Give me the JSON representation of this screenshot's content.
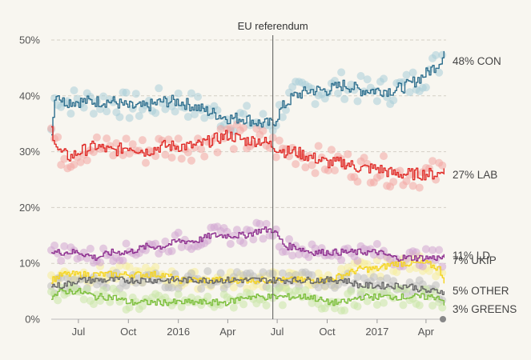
{
  "chart_data": {
    "type": "line",
    "title": "",
    "xlabel": "",
    "ylabel": "",
    "x_range": [
      "2015-05-12",
      "2017-05-08"
    ],
    "ylim": [
      0,
      52
    ],
    "y_ticks": [
      0,
      10,
      20,
      30,
      40,
      50
    ],
    "y_tick_labels": [
      "0%",
      "10%",
      "20%",
      "30%",
      "40%",
      "50%"
    ],
    "x_ticks": [
      {
        "date": "2015-07-01",
        "label": "Jul"
      },
      {
        "date": "2015-10-01",
        "label": "Oct"
      },
      {
        "date": "2016-01-01",
        "label": "2016"
      },
      {
        "date": "2016-04-01",
        "label": "Apr"
      },
      {
        "date": "2016-07-01",
        "label": "Jul"
      },
      {
        "date": "2016-10-01",
        "label": "Oct"
      },
      {
        "date": "2017-01-01",
        "label": "2017"
      },
      {
        "date": "2017-04-01",
        "label": "Apr"
      }
    ],
    "grid": "horizontal dashed",
    "annotation": {
      "date": "2016-06-23",
      "label": "EU referendum"
    },
    "series": [
      {
        "name": "CON",
        "color": "#2e6f8e",
        "dot_color": "#a9cdd8",
        "end_label": "48% CON",
        "points": [
          [
            "2015-05-12",
            34
          ],
          [
            "2015-05-20",
            41
          ],
          [
            "2015-06-01",
            39
          ],
          [
            "2015-07-01",
            39
          ],
          [
            "2015-08-01",
            39
          ],
          [
            "2015-09-01",
            39
          ],
          [
            "2015-10-01",
            38
          ],
          [
            "2015-11-01",
            38
          ],
          [
            "2015-12-01",
            39
          ],
          [
            "2016-01-01",
            39
          ],
          [
            "2016-02-01",
            38
          ],
          [
            "2016-03-01",
            37
          ],
          [
            "2016-04-01",
            36
          ],
          [
            "2016-05-01",
            36
          ],
          [
            "2016-06-01",
            35
          ],
          [
            "2016-06-23",
            35
          ],
          [
            "2016-07-10",
            38
          ],
          [
            "2016-08-01",
            40
          ],
          [
            "2016-09-01",
            41
          ],
          [
            "2016-10-01",
            41
          ],
          [
            "2016-11-01",
            42
          ],
          [
            "2016-12-01",
            41
          ],
          [
            "2017-01-01",
            41
          ],
          [
            "2017-02-01",
            41
          ],
          [
            "2017-03-01",
            42
          ],
          [
            "2017-04-01",
            44
          ],
          [
            "2017-04-25",
            46
          ],
          [
            "2017-05-04",
            48
          ]
        ]
      },
      {
        "name": "LAB",
        "color": "#e02b27",
        "dot_color": "#f3a5a3",
        "end_label": "27% LAB",
        "points": [
          [
            "2015-05-12",
            34
          ],
          [
            "2015-05-25",
            30
          ],
          [
            "2015-06-15",
            29
          ],
          [
            "2015-07-01",
            30
          ],
          [
            "2015-08-01",
            31
          ],
          [
            "2015-09-01",
            30
          ],
          [
            "2015-10-01",
            31
          ],
          [
            "2015-11-01",
            30
          ],
          [
            "2015-12-01",
            31
          ],
          [
            "2016-01-01",
            31
          ],
          [
            "2016-02-01",
            31
          ],
          [
            "2016-03-01",
            32
          ],
          [
            "2016-04-01",
            33
          ],
          [
            "2016-05-01",
            32
          ],
          [
            "2016-06-01",
            32
          ],
          [
            "2016-06-23",
            31
          ],
          [
            "2016-07-15",
            30
          ],
          [
            "2016-08-01",
            30
          ],
          [
            "2016-09-01",
            29
          ],
          [
            "2016-10-01",
            28
          ],
          [
            "2016-11-01",
            28
          ],
          [
            "2016-12-01",
            27
          ],
          [
            "2017-01-01",
            27
          ],
          [
            "2017-02-01",
            26
          ],
          [
            "2017-03-01",
            26
          ],
          [
            "2017-04-01",
            26
          ],
          [
            "2017-04-25",
            26
          ],
          [
            "2017-05-04",
            27
          ]
        ]
      },
      {
        "name": "UKIP",
        "color": "#f5d41f",
        "dot_color": "#f6ec9a",
        "end_label": "7% UKIP",
        "points": [
          [
            "2015-05-12",
            7
          ],
          [
            "2015-06-01",
            8
          ],
          [
            "2015-07-01",
            8
          ],
          [
            "2015-08-01",
            8
          ],
          [
            "2015-09-01",
            8
          ],
          [
            "2015-10-01",
            8
          ],
          [
            "2015-11-01",
            8
          ],
          [
            "2015-12-01",
            8
          ],
          [
            "2016-01-01",
            7
          ],
          [
            "2016-02-01",
            7
          ],
          [
            "2016-03-01",
            7
          ],
          [
            "2016-04-01",
            7
          ],
          [
            "2016-05-01",
            7
          ],
          [
            "2016-06-01",
            7
          ],
          [
            "2016-06-23",
            7
          ],
          [
            "2016-07-15",
            7
          ],
          [
            "2016-08-01",
            7
          ],
          [
            "2016-09-01",
            7
          ],
          [
            "2016-10-01",
            7
          ],
          [
            "2016-11-01",
            8
          ],
          [
            "2016-12-01",
            9
          ],
          [
            "2017-01-01",
            9
          ],
          [
            "2017-02-01",
            10
          ],
          [
            "2017-03-01",
            10
          ],
          [
            "2017-04-01",
            10
          ],
          [
            "2017-04-25",
            9
          ],
          [
            "2017-05-04",
            7
          ]
        ]
      },
      {
        "name": "LD",
        "color": "#8e3090",
        "dot_color": "#d1a5d2",
        "end_label": "11% LD",
        "points": [
          [
            "2015-05-12",
            12
          ],
          [
            "2015-06-01",
            12
          ],
          [
            "2015-07-01",
            12
          ],
          [
            "2015-08-01",
            11
          ],
          [
            "2015-09-01",
            12
          ],
          [
            "2015-10-01",
            12
          ],
          [
            "2015-11-01",
            13
          ],
          [
            "2015-12-01",
            13
          ],
          [
            "2016-01-01",
            14
          ],
          [
            "2016-02-01",
            14
          ],
          [
            "2016-03-01",
            15
          ],
          [
            "2016-04-01",
            15
          ],
          [
            "2016-05-01",
            15
          ],
          [
            "2016-06-01",
            16
          ],
          [
            "2016-06-23",
            16
          ],
          [
            "2016-07-15",
            13
          ],
          [
            "2016-08-01",
            13
          ],
          [
            "2016-09-01",
            12
          ],
          [
            "2016-10-01",
            12
          ],
          [
            "2016-11-01",
            12
          ],
          [
            "2016-12-01",
            12
          ],
          [
            "2017-01-01",
            12
          ],
          [
            "2017-02-01",
            11
          ],
          [
            "2017-03-01",
            11
          ],
          [
            "2017-04-01",
            11
          ],
          [
            "2017-04-25",
            11
          ],
          [
            "2017-05-04",
            11
          ]
        ]
      },
      {
        "name": "OTHER",
        "color": "#666666",
        "dot_color": "#bdbdbd",
        "end_label": "5% OTHER",
        "points": [
          [
            "2015-05-12",
            6
          ],
          [
            "2015-06-01",
            6
          ],
          [
            "2015-07-01",
            7
          ],
          [
            "2015-08-01",
            7
          ],
          [
            "2015-09-01",
            7
          ],
          [
            "2015-10-01",
            7
          ],
          [
            "2015-11-01",
            7
          ],
          [
            "2015-12-01",
            7
          ],
          [
            "2016-01-01",
            7
          ],
          [
            "2016-02-01",
            7
          ],
          [
            "2016-03-01",
            7
          ],
          [
            "2016-04-01",
            7
          ],
          [
            "2016-05-01",
            7
          ],
          [
            "2016-06-01",
            7
          ],
          [
            "2016-06-23",
            7
          ],
          [
            "2016-07-15",
            7
          ],
          [
            "2016-08-01",
            7
          ],
          [
            "2016-09-01",
            7
          ],
          [
            "2016-10-01",
            7
          ],
          [
            "2016-11-01",
            7
          ],
          [
            "2016-12-01",
            6
          ],
          [
            "2017-01-01",
            6
          ],
          [
            "2017-02-01",
            6
          ],
          [
            "2017-03-01",
            6
          ],
          [
            "2017-04-01",
            5
          ],
          [
            "2017-04-25",
            5
          ],
          [
            "2017-05-04",
            5
          ]
        ]
      },
      {
        "name": "GREENS",
        "color": "#7cbf3c",
        "dot_color": "#c8e5a6",
        "end_label": "3% GREENS",
        "points": [
          [
            "2015-05-12",
            4
          ],
          [
            "2015-06-01",
            5
          ],
          [
            "2015-07-01",
            5
          ],
          [
            "2015-08-01",
            4
          ],
          [
            "2015-09-01",
            4
          ],
          [
            "2015-10-01",
            3
          ],
          [
            "2015-11-01",
            3
          ],
          [
            "2015-12-01",
            3
          ],
          [
            "2016-01-01",
            3
          ],
          [
            "2016-02-01",
            3
          ],
          [
            "2016-03-01",
            3
          ],
          [
            "2016-04-01",
            3
          ],
          [
            "2016-05-01",
            4
          ],
          [
            "2016-06-01",
            4
          ],
          [
            "2016-06-23",
            4
          ],
          [
            "2016-07-15",
            4
          ],
          [
            "2016-08-01",
            4
          ],
          [
            "2016-09-01",
            4
          ],
          [
            "2016-10-01",
            3
          ],
          [
            "2016-11-01",
            3
          ],
          [
            "2016-12-01",
            4
          ],
          [
            "2017-01-01",
            4
          ],
          [
            "2017-02-01",
            4
          ],
          [
            "2017-03-01",
            4
          ],
          [
            "2017-04-01",
            4
          ],
          [
            "2017-04-25",
            4
          ],
          [
            "2017-05-04",
            3
          ]
        ]
      }
    ]
  }
}
